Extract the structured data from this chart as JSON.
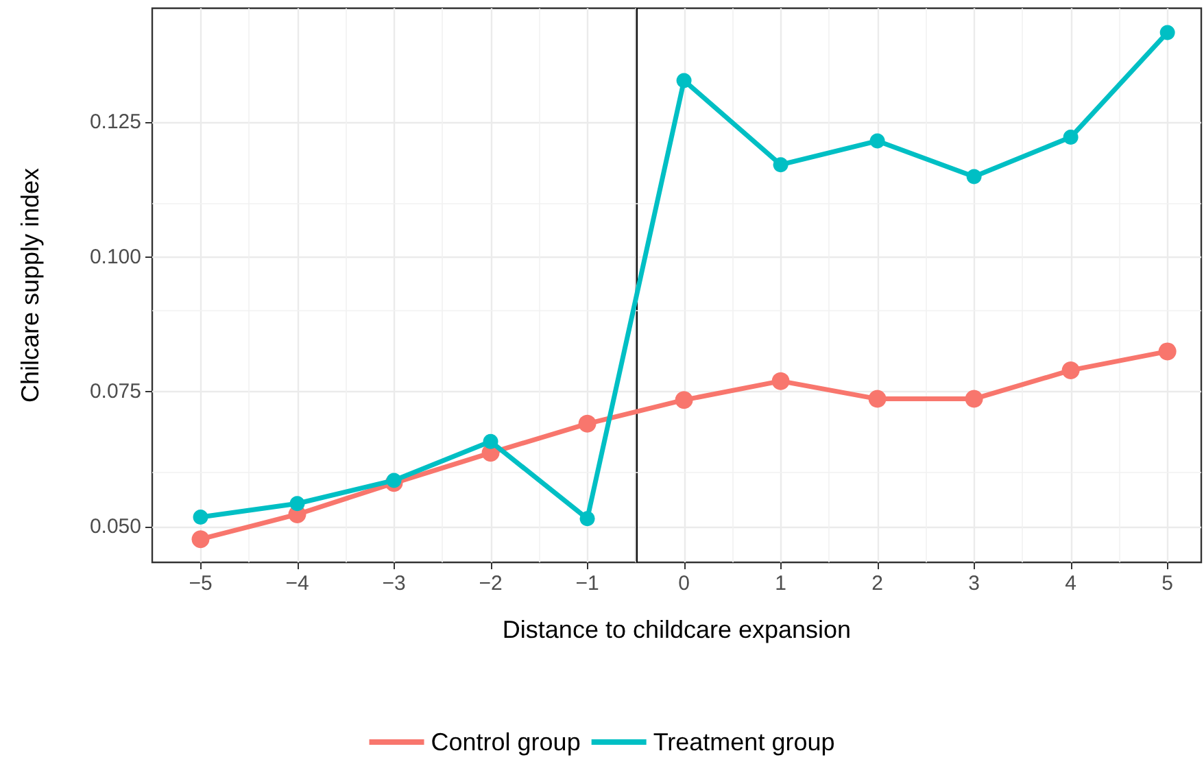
{
  "chart_data": {
    "type": "line",
    "xlabel": "Distance to childcare expansion",
    "ylabel": "Chilcare supply index",
    "x": [
      -5,
      -4,
      -3,
      -2,
      -1,
      0,
      1,
      2,
      3,
      4,
      5
    ],
    "series": [
      {
        "name": "Control group",
        "color": "#f8766d",
        "values": [
          0.0477,
          0.0523,
          0.0581,
          0.0637,
          0.0691,
          0.0735,
          0.077,
          0.0737,
          0.0737,
          0.079,
          0.0825
        ]
      },
      {
        "name": "Treatment group",
        "color": "#00bfc4",
        "values": [
          0.0518,
          0.0543,
          0.0586,
          0.0658,
          0.0515,
          0.1327,
          0.1171,
          0.1215,
          0.1149,
          0.1222,
          0.1416
        ]
      }
    ],
    "xlim": [
      -5.5,
      5.35
    ],
    "xticks": [
      {
        "value": -5,
        "label": "−5"
      },
      {
        "value": -4,
        "label": "−4"
      },
      {
        "value": -3,
        "label": "−3"
      },
      {
        "value": -2,
        "label": "−2"
      },
      {
        "value": -1,
        "label": "−1"
      },
      0,
      1,
      2,
      3,
      4,
      5
    ],
    "ylim": [
      0.0434,
      0.1461
    ],
    "yticks": [
      {
        "value": 0.05,
        "label": "0.050"
      },
      {
        "value": 0.075,
        "label": "0.075"
      },
      {
        "value": 0.1,
        "label": "0.100"
      },
      {
        "value": 0.125,
        "label": "0.125"
      }
    ],
    "ref_lines": [
      {
        "axis": "x",
        "value": -0.5,
        "color": "#000000"
      }
    ],
    "grid": true,
    "legend": "bottom",
    "marker": "circle",
    "line_style": "solid"
  }
}
